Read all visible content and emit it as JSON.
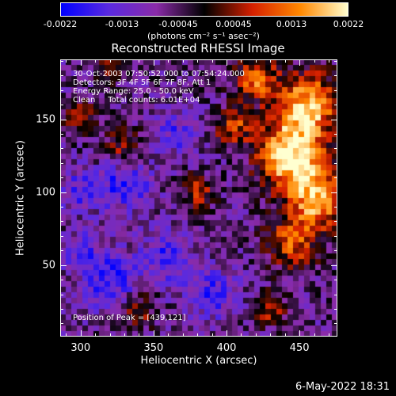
{
  "colorbar": {
    "tick_labels": [
      "-0.0022",
      "-0.0013",
      "-0.00045",
      "0.00045",
      "0.0013",
      "0.0022"
    ],
    "units_label": "(photons cm⁻² s⁻¹ asec⁻²)",
    "range": [
      -0.0022,
      0.0022
    ],
    "colors": [
      "#0000ff",
      "#5a2ae0",
      "#8a2ba8",
      "#000000",
      "#d62000",
      "#ff8800",
      "#ffffd0"
    ]
  },
  "annotations": {
    "time_range": "30-Oct-2003 07:50:52.000 to 07:54:24.000",
    "detectors": "Detectors: 3F 4F 5F 6F 7F 8F, Att 1",
    "energy_range": "Energy Range: 25.0 - 50.0 keV",
    "clean_counts": "Clean     Total counts: 6.01E+04",
    "peak_position": "Position of Peak = [439,121]"
  },
  "footer": {
    "datestamp": "6-May-2022 18:31"
  },
  "chart_data": {
    "type": "heatmap",
    "title": "Reconstructed RHESSI Image",
    "xlabel": "Heliocentric X (arcsec)",
    "ylabel": "Heliocentric Y (arcsec)",
    "xlim": [
      286,
      476
    ],
    "ylim": [
      1,
      191
    ],
    "x_ticks": [
      300,
      350,
      400,
      450
    ],
    "y_ticks": [
      50,
      100,
      150
    ],
    "colorbar_range": [
      -0.0022,
      0.0022
    ],
    "peak": {
      "x": 439,
      "y": 121
    },
    "bright_regions": [
      {
        "x": 445,
        "y": 125,
        "sigma": 16,
        "value": 0.0022
      },
      {
        "x": 455,
        "y": 160,
        "sigma": 15,
        "value": 0.0018
      },
      {
        "x": 462,
        "y": 95,
        "sigma": 14,
        "value": 0.0016
      },
      {
        "x": 420,
        "y": 178,
        "sigma": 10,
        "value": 0.0012
      },
      {
        "x": 445,
        "y": 65,
        "sigma": 12,
        "value": 0.001
      },
      {
        "x": 405,
        "y": 145,
        "sigma": 9,
        "value": 0.0008
      },
      {
        "x": 380,
        "y": 100,
        "sigma": 8,
        "value": 0.0006
      },
      {
        "x": 330,
        "y": 130,
        "sigma": 9,
        "value": 0.0005
      },
      {
        "x": 300,
        "y": 150,
        "sigma": 8,
        "value": 0.0005
      },
      {
        "x": 340,
        "y": 20,
        "sigma": 8,
        "value": 0.0005
      },
      {
        "x": 430,
        "y": 20,
        "sigma": 8,
        "value": 0.0006
      },
      {
        "x": 320,
        "y": 185,
        "sigma": 7,
        "value": 0.0004
      }
    ],
    "dark_regions": [
      {
        "x": 330,
        "y": 105,
        "sigma": 12,
        "value": -0.0013
      },
      {
        "x": 320,
        "y": 40,
        "sigma": 14,
        "value": -0.0012
      },
      {
        "x": 360,
        "y": 55,
        "sigma": 12,
        "value": -0.0011
      },
      {
        "x": 300,
        "y": 100,
        "sigma": 10,
        "value": -0.001
      },
      {
        "x": 390,
        "y": 30,
        "sigma": 12,
        "value": -0.0011
      },
      {
        "x": 365,
        "y": 140,
        "sigma": 10,
        "value": -0.0009
      },
      {
        "x": 300,
        "y": 60,
        "sigma": 8,
        "value": -0.001
      }
    ]
  }
}
